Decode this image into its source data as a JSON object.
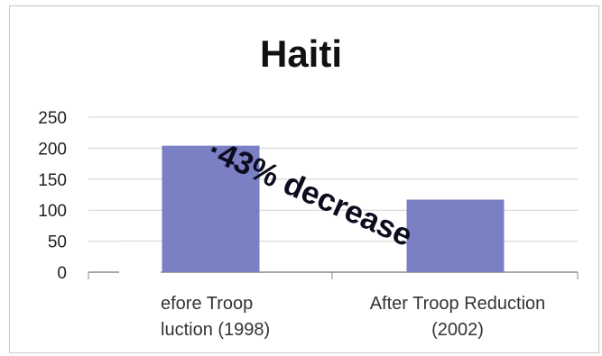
{
  "chart_data": {
    "type": "bar",
    "title": "Haiti",
    "categories": [
      [
        "efore Troop",
        "luction (1998)"
      ],
      [
        "After Troop Reduction",
        "(2002)"
      ]
    ],
    "values": [
      204,
      117
    ],
    "ylim": [
      0,
      250
    ],
    "yticks": [
      0,
      50,
      100,
      150,
      200,
      250
    ],
    "grid": true,
    "legend": "none",
    "annotation": "·43% decrease",
    "colors": {
      "bar": "#7b7fc4",
      "grid": "#cfcfcf",
      "axis": "#8a8a8a"
    }
  }
}
